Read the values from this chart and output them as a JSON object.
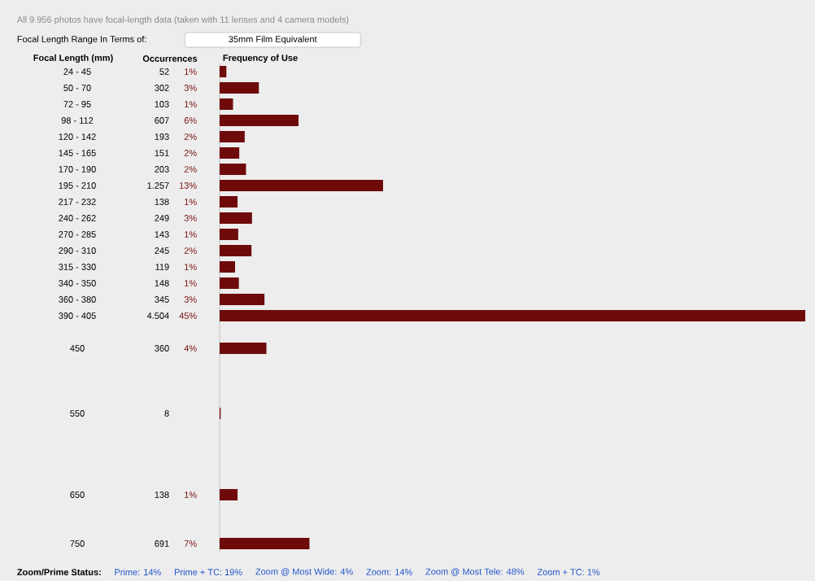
{
  "chart_data": {
    "type": "bar",
    "orientation": "horizontal",
    "title": "All 9.956 photos have focal-length data (taken with 11 lenses and 4 camera models)",
    "ylabel": "Focal Length (mm)",
    "xlabel": "Frequency of Use",
    "categories": [
      "24 - 45",
      "50 - 70",
      "72 - 95",
      "98 - 112",
      "120 - 142",
      "145 - 165",
      "170 - 190",
      "195 - 210",
      "217 - 232",
      "240 - 262",
      "270 - 285",
      "290 - 310",
      "315 - 330",
      "340 - 350",
      "360 - 380",
      "390 - 405",
      null,
      "450",
      null,
      null,
      null,
      "550",
      null,
      null,
      null,
      null,
      "650",
      null,
      null,
      "750"
    ],
    "values": [
      52,
      302,
      103,
      607,
      193,
      151,
      203,
      1257,
      138,
      249,
      143,
      245,
      119,
      148,
      345,
      4504,
      null,
      360,
      null,
      null,
      null,
      8,
      null,
      null,
      null,
      null,
      138,
      null,
      null,
      691
    ],
    "value_labels": [
      "52",
      "302",
      "103",
      "607",
      "193",
      "151",
      "203",
      "1.257",
      "138",
      "249",
      "143",
      "245",
      "119",
      "148",
      "345",
      "4.504",
      null,
      "360",
      null,
      null,
      null,
      "8",
      null,
      null,
      null,
      null,
      "138",
      null,
      null,
      "691"
    ],
    "color": "#6e0a0a",
    "grid": false,
    "annotations": [
      "Focal Length Range In Terms of:",
      "35mm Film Equivalent",
      "Occurrences",
      "Zoom/Prime Status:",
      "Prime: 14%",
      "Prime + TC: 19%",
      "Zoom @ Most Wide: 4%",
      "Zoom: 14%",
      "Zoom @ Most Tele: 48%",
      "Zoom + TC: 1%",
      "1%",
      "3%",
      "1%",
      "6%",
      "2%",
      "2%",
      "2%",
      "13%",
      "1%",
      "3%",
      "1%",
      "2%",
      "1%",
      "1%",
      "3%",
      "45%",
      "4%",
      "1%",
      "7%"
    ]
  }
}
